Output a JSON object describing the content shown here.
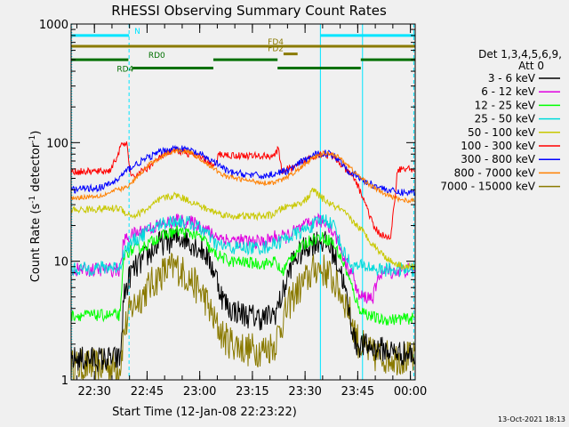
{
  "chart_data": {
    "type": "line",
    "title": "RHESSI Observing Summary Count Rates",
    "xlabel": "Start Time (12-Jan-08 22:23:22)",
    "ylabel_main": "Count Rate (s",
    "ylabel_sup": "-1",
    "ylabel_mid": " detector",
    "ylabel_end": ")",
    "x_unit": "minutes since 22:23:22",
    "xlim": [
      0,
      98
    ],
    "ylim": [
      1,
      1000
    ],
    "yscale": "log",
    "x_ticks": [
      "22:30",
      "22:45",
      "23:00",
      "23:15",
      "23:30",
      "23:45",
      "00:00"
    ],
    "y_ticks": [
      "1",
      "10",
      "100",
      "1000"
    ],
    "legend_header": [
      "Det 1,3,4,5,6,9,",
      "Att 0"
    ],
    "legend_position": "right",
    "timestamp": "13-Oct-2021 18:13",
    "flags": {
      "N": {
        "label": "N",
        "color": "#00e5ff",
        "y": 800,
        "intervals": [
          [
            0,
            16.5
          ],
          [
            71,
            98
          ]
        ]
      },
      "FD4": {
        "label": "FD4",
        "color": "#8a7a00",
        "y": 650,
        "intervals": [
          [
            0,
            98
          ]
        ]
      },
      "FD2": {
        "label": "FD2",
        "color": "#8a7a00",
        "y": 560,
        "intervals": [
          [
            60.5,
            64.5
          ]
        ]
      },
      "RD0": {
        "label": "RD0",
        "color": "#007000",
        "y": 500,
        "intervals": [
          [
            0,
            16.3
          ],
          [
            40.5,
            58.8
          ],
          [
            82.5,
            98
          ]
        ]
      },
      "RD4": {
        "label": "RD4",
        "color": "#007000",
        "y": 425,
        "intervals": [
          [
            17.5,
            40.5
          ],
          [
            58.8,
            82.5
          ]
        ]
      }
    },
    "vlines": [
      {
        "x": 0.2,
        "style": "dotted",
        "color": "#00e5ff"
      },
      {
        "x": 16.5,
        "style": "dashed",
        "color": "#00e5ff"
      },
      {
        "x": 71,
        "style": "solid",
        "color": "#00e5ff"
      },
      {
        "x": 83,
        "style": "solid",
        "color": "#00e5ff"
      },
      {
        "x": 97.6,
        "style": "dashed",
        "color": "#00e5ff"
      }
    ],
    "series": [
      {
        "name": "3 - 6 keV",
        "color": "#000000",
        "noise": 0.22,
        "points": [
          [
            0,
            1.5
          ],
          [
            14,
            1.5
          ],
          [
            15,
            5
          ],
          [
            17,
            8
          ],
          [
            25,
            14
          ],
          [
            32,
            16
          ],
          [
            38,
            12
          ],
          [
            41,
            8
          ],
          [
            43,
            5
          ],
          [
            45,
            4
          ],
          [
            50,
            3.5
          ],
          [
            55,
            3.3
          ],
          [
            58,
            3.6
          ],
          [
            60,
            5
          ],
          [
            63,
            10
          ],
          [
            68,
            14
          ],
          [
            71,
            15
          ],
          [
            74,
            13
          ],
          [
            77,
            8
          ],
          [
            79,
            4
          ],
          [
            81,
            2
          ],
          [
            98,
            1.6
          ]
        ]
      },
      {
        "name": "6 - 12 keV",
        "color": "#e000e0",
        "noise": 0.12,
        "points": [
          [
            0,
            8.5
          ],
          [
            14,
            8.5
          ],
          [
            15,
            15
          ],
          [
            18,
            17
          ],
          [
            22,
            19
          ],
          [
            25,
            20
          ],
          [
            30,
            22
          ],
          [
            35,
            21
          ],
          [
            38,
            19
          ],
          [
            40,
            17
          ],
          [
            45,
            15
          ],
          [
            55,
            14.5
          ],
          [
            58,
            16
          ],
          [
            61,
            16
          ],
          [
            64,
            18
          ],
          [
            67,
            20
          ],
          [
            70,
            22
          ],
          [
            73,
            21
          ],
          [
            76,
            15
          ],
          [
            78,
            10
          ],
          [
            80,
            8
          ],
          [
            82,
            5
          ],
          [
            86,
            5
          ],
          [
            88,
            8
          ],
          [
            98,
            8.5
          ]
        ]
      },
      {
        "name": "12 - 25 keV",
        "color": "#00ff00",
        "noise": 0.1,
        "points": [
          [
            0,
            3.5
          ],
          [
            14,
            3.5
          ],
          [
            15,
            11
          ],
          [
            16,
            12
          ],
          [
            20,
            13
          ],
          [
            25,
            16
          ],
          [
            30,
            18
          ],
          [
            35,
            17
          ],
          [
            38,
            15
          ],
          [
            40,
            12
          ],
          [
            45,
            10
          ],
          [
            55,
            9.5
          ],
          [
            58,
            10
          ],
          [
            60,
            8
          ],
          [
            62,
            10
          ],
          [
            64,
            12
          ],
          [
            68,
            15
          ],
          [
            71,
            16
          ],
          [
            74,
            15
          ],
          [
            76,
            12
          ],
          [
            78,
            9
          ],
          [
            80,
            6
          ],
          [
            82,
            4
          ],
          [
            85,
            3.5
          ],
          [
            88,
            3.2
          ],
          [
            98,
            3.3
          ]
        ]
      },
      {
        "name": "25 - 50 keV",
        "color": "#00dada",
        "noise": 0.12,
        "points": [
          [
            0,
            8.5
          ],
          [
            14,
            9
          ],
          [
            15,
            12
          ],
          [
            18,
            15
          ],
          [
            22,
            18
          ],
          [
            26,
            21
          ],
          [
            30,
            22
          ],
          [
            34,
            21
          ],
          [
            38,
            18
          ],
          [
            41,
            14
          ],
          [
            45,
            13
          ],
          [
            55,
            13
          ],
          [
            58,
            14
          ],
          [
            62,
            16
          ],
          [
            66,
            18
          ],
          [
            70,
            21
          ],
          [
            72,
            23
          ],
          [
            75,
            20
          ],
          [
            77,
            13
          ],
          [
            80,
            9
          ],
          [
            85,
            9
          ],
          [
            87,
            8.5
          ],
          [
            98,
            8.5
          ]
        ]
      },
      {
        "name": "50 - 100 keV",
        "color": "#c8c800",
        "noise": 0.06,
        "points": [
          [
            0,
            27
          ],
          [
            14,
            28
          ],
          [
            16,
            25
          ],
          [
            18,
            24
          ],
          [
            22,
            28
          ],
          [
            26,
            34
          ],
          [
            30,
            36
          ],
          [
            34,
            32
          ],
          [
            38,
            28
          ],
          [
            41,
            26
          ],
          [
            43,
            25
          ],
          [
            45,
            24
          ],
          [
            55,
            24
          ],
          [
            58,
            25
          ],
          [
            60,
            28
          ],
          [
            64,
            30
          ],
          [
            67,
            33
          ],
          [
            69,
            40
          ],
          [
            71,
            35
          ],
          [
            74,
            30
          ],
          [
            77,
            27
          ],
          [
            80,
            22
          ],
          [
            83,
            18
          ],
          [
            85,
            15
          ],
          [
            88,
            12
          ],
          [
            91,
            10
          ],
          [
            95,
            9
          ],
          [
            98,
            9
          ]
        ]
      },
      {
        "name": "100 - 300 keV",
        "color": "#ff0000",
        "noise": 0.06,
        "points": [
          [
            0,
            57
          ],
          [
            8,
            57
          ],
          [
            11,
            58
          ],
          [
            13,
            75
          ],
          [
            14,
            90
          ],
          [
            15,
            98
          ],
          [
            16,
            95
          ],
          [
            17,
            50
          ],
          [
            22,
            62
          ],
          [
            26,
            78
          ],
          [
            30,
            86
          ],
          [
            34,
            80
          ],
          [
            38,
            72
          ],
          [
            41,
            62
          ],
          [
            42,
            80
          ],
          [
            46,
            78
          ],
          [
            55,
            77
          ],
          [
            58,
            78
          ],
          [
            59,
            88
          ],
          [
            60,
            58
          ],
          [
            64,
            62
          ],
          [
            68,
            75
          ],
          [
            71,
            80
          ],
          [
            74,
            78
          ],
          [
            77,
            65
          ],
          [
            79,
            56
          ],
          [
            81,
            48
          ],
          [
            84,
            30
          ],
          [
            86,
            20
          ],
          [
            88,
            17
          ],
          [
            90,
            16
          ],
          [
            91,
            15
          ],
          [
            93,
            60
          ],
          [
            98,
            60
          ]
        ]
      },
      {
        "name": "300 - 800 keV",
        "color": "#0000ff",
        "noise": 0.06,
        "points": [
          [
            0,
            40
          ],
          [
            9,
            42
          ],
          [
            13,
            48
          ],
          [
            15,
            55
          ],
          [
            17,
            62
          ],
          [
            22,
            75
          ],
          [
            26,
            85
          ],
          [
            30,
            90
          ],
          [
            34,
            86
          ],
          [
            38,
            76
          ],
          [
            41,
            68
          ],
          [
            45,
            56
          ],
          [
            50,
            54
          ],
          [
            55,
            52
          ],
          [
            58,
            55
          ],
          [
            62,
            58
          ],
          [
            66,
            70
          ],
          [
            70,
            80
          ],
          [
            73,
            82
          ],
          [
            76,
            74
          ],
          [
            79,
            58
          ],
          [
            83,
            48
          ],
          [
            86,
            44
          ],
          [
            90,
            40
          ],
          [
            93,
            38
          ],
          [
            98,
            38
          ]
        ]
      },
      {
        "name": "800 - 7000 keV",
        "color": "#ff8000",
        "noise": 0.04,
        "points": [
          [
            0,
            34
          ],
          [
            9,
            36
          ],
          [
            13,
            40
          ],
          [
            16,
            42
          ],
          [
            19,
            52
          ],
          [
            23,
            68
          ],
          [
            27,
            80
          ],
          [
            30,
            86
          ],
          [
            33,
            85
          ],
          [
            36,
            76
          ],
          [
            40,
            62
          ],
          [
            44,
            52
          ],
          [
            50,
            48
          ],
          [
            55,
            46
          ],
          [
            58,
            46
          ],
          [
            61,
            50
          ],
          [
            65,
            60
          ],
          [
            69,
            74
          ],
          [
            72,
            82
          ],
          [
            75,
            80
          ],
          [
            78,
            68
          ],
          [
            82,
            52
          ],
          [
            86,
            42
          ],
          [
            90,
            36
          ],
          [
            94,
            33
          ],
          [
            98,
            32
          ]
        ]
      },
      {
        "name": "7000 - 15000 keV",
        "color": "#8a7a00",
        "noise": 0.3,
        "points": [
          [
            0,
            1.3
          ],
          [
            14,
            1.3
          ],
          [
            15,
            2.5
          ],
          [
            17,
            4
          ],
          [
            22,
            6
          ],
          [
            26,
            8
          ],
          [
            30,
            9
          ],
          [
            34,
            7
          ],
          [
            38,
            5
          ],
          [
            41,
            3
          ],
          [
            44,
            2.2
          ],
          [
            50,
            1.8
          ],
          [
            55,
            1.8
          ],
          [
            58,
            2
          ],
          [
            60,
            3
          ],
          [
            63,
            5
          ],
          [
            67,
            7
          ],
          [
            70,
            9
          ],
          [
            73,
            8
          ],
          [
            76,
            6
          ],
          [
            79,
            4
          ],
          [
            82,
            2
          ],
          [
            86,
            1.6
          ],
          [
            98,
            1.5
          ]
        ]
      }
    ]
  }
}
